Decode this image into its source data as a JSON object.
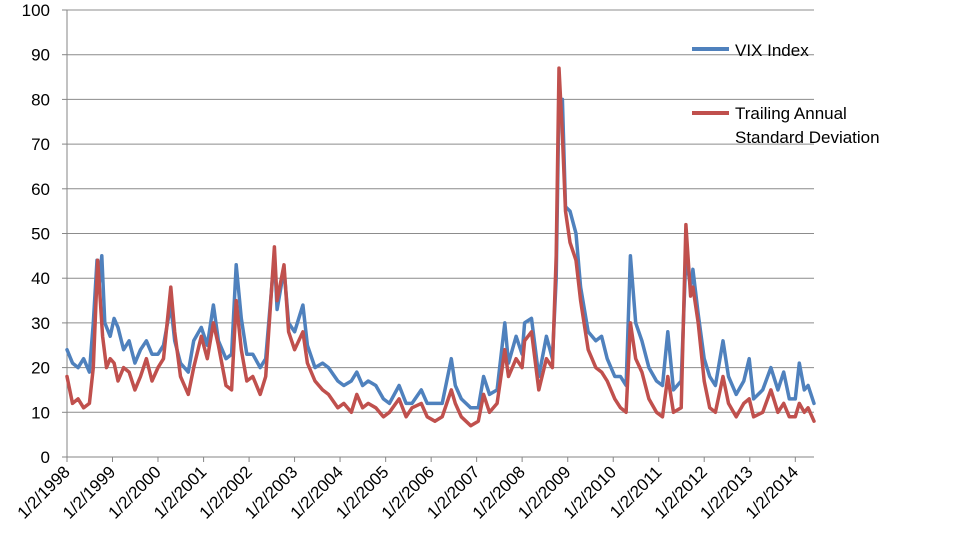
{
  "chart_data": {
    "type": "line",
    "title": "",
    "xlabel": "",
    "ylabel": "",
    "ylim": [
      0,
      100
    ],
    "yticks": [
      0,
      10,
      20,
      30,
      40,
      50,
      60,
      70,
      80,
      90,
      100
    ],
    "xlim": [
      "1/2/1998",
      "6/1/2014"
    ],
    "xticks": [
      "1/2/1998",
      "1/2/1999",
      "1/2/2000",
      "1/2/2001",
      "1/2/2002",
      "1/2/2003",
      "1/2/2004",
      "1/2/2005",
      "1/2/2006",
      "1/2/2007",
      "1/2/2008",
      "1/2/2009",
      "1/2/2010",
      "1/2/2011",
      "1/2/2012",
      "1/2/2013",
      "1/2/2014"
    ],
    "grid": "horizontal",
    "legend_position": "right",
    "series": [
      {
        "name": "VIX Index",
        "color": "#4F81BD",
        "points": [
          [
            "1/2/1998",
            24
          ],
          [
            "2/15/1998",
            21
          ],
          [
            "4/1/1998",
            20
          ],
          [
            "5/15/1998",
            22
          ],
          [
            "7/1/1998",
            19
          ],
          [
            "8/1/1998",
            30
          ],
          [
            "8/31/1998",
            44
          ],
          [
            "9/15/1998",
            38
          ],
          [
            "10/8/1998",
            45
          ],
          [
            "11/1/1998",
            30
          ],
          [
            "12/15/1998",
            27
          ],
          [
            "1/15/1999",
            31
          ],
          [
            "2/15/1999",
            29
          ],
          [
            "4/1/1999",
            24
          ],
          [
            "5/15/1999",
            26
          ],
          [
            "7/1/1999",
            21
          ],
          [
            "8/15/1999",
            24
          ],
          [
            "10/1/1999",
            26
          ],
          [
            "11/15/1999",
            23
          ],
          [
            "1/2/2000",
            23
          ],
          [
            "2/15/2000",
            25
          ],
          [
            "4/14/2000",
            34
          ],
          [
            "5/15/2000",
            26
          ],
          [
            "7/1/2000",
            21
          ],
          [
            "9/1/2000",
            19
          ],
          [
            "10/15/2000",
            26
          ],
          [
            "12/15/2000",
            29
          ],
          [
            "2/1/2001",
            25
          ],
          [
            "3/22/2001",
            34
          ],
          [
            "5/1/2001",
            26
          ],
          [
            "7/1/2001",
            22
          ],
          [
            "8/15/2001",
            23
          ],
          [
            "9/21/2001",
            43
          ],
          [
            "11/1/2001",
            31
          ],
          [
            "12/15/2001",
            23
          ],
          [
            "2/1/2002",
            23
          ],
          [
            "4/1/2002",
            20
          ],
          [
            "5/15/2002",
            22
          ],
          [
            "7/24/2002",
            45
          ],
          [
            "8/15/2002",
            33
          ],
          [
            "10/9/2002",
            42
          ],
          [
            "11/15/2002",
            30
          ],
          [
            "1/2/2003",
            28
          ],
          [
            "3/10/2003",
            34
          ],
          [
            "4/15/2003",
            25
          ],
          [
            "6/15/2003",
            20
          ],
          [
            "8/15/2003",
            21
          ],
          [
            "10/1/2003",
            20
          ],
          [
            "12/15/2003",
            17
          ],
          [
            "2/1/2004",
            16
          ],
          [
            "4/1/2004",
            17
          ],
          [
            "5/15/2004",
            19
          ],
          [
            "7/1/2004",
            16
          ],
          [
            "8/15/2004",
            17
          ],
          [
            "10/15/2004",
            16
          ],
          [
            "12/15/2004",
            13
          ],
          [
            "2/1/2005",
            12
          ],
          [
            "4/20/2005",
            16
          ],
          [
            "6/15/2005",
            12
          ],
          [
            "8/1/2005",
            12
          ],
          [
            "10/15/2005",
            15
          ],
          [
            "12/1/2005",
            12
          ],
          [
            "2/1/2006",
            12
          ],
          [
            "4/1/2006",
            12
          ],
          [
            "6/13/2006",
            22
          ],
          [
            "7/15/2006",
            16
          ],
          [
            "9/1/2006",
            13
          ],
          [
            "11/15/2006",
            11
          ],
          [
            "1/15/2007",
            11
          ],
          [
            "2/27/2007",
            18
          ],
          [
            "4/15/2007",
            14
          ],
          [
            "6/15/2007",
            15
          ],
          [
            "8/16/2007",
            30
          ],
          [
            "9/15/2007",
            21
          ],
          [
            "11/15/2007",
            27
          ],
          [
            "1/2/2008",
            23
          ],
          [
            "1/22/2008",
            30
          ],
          [
            "3/17/2008",
            31
          ],
          [
            "5/15/2008",
            18
          ],
          [
            "7/15/2008",
            27
          ],
          [
            "9/1/2008",
            22
          ],
          [
            "10/1/2008",
            40
          ],
          [
            "10/24/2008",
            80
          ],
          [
            "11/20/2008",
            80
          ],
          [
            "12/15/2008",
            56
          ],
          [
            "1/20/2009",
            55
          ],
          [
            "3/9/2009",
            50
          ],
          [
            "4/15/2009",
            38
          ],
          [
            "6/15/2009",
            28
          ],
          [
            "8/15/2009",
            26
          ],
          [
            "10/1/2009",
            27
          ],
          [
            "11/15/2009",
            22
          ],
          [
            "1/15/2010",
            18
          ],
          [
            "3/1/2010",
            18
          ],
          [
            "4/15/2010",
            16
          ],
          [
            "5/20/2010",
            45
          ],
          [
            "7/1/2010",
            30
          ],
          [
            "8/20/2010",
            26
          ],
          [
            "10/15/2010",
            20
          ],
          [
            "12/15/2010",
            17
          ],
          [
            "2/1/2011",
            16
          ],
          [
            "3/16/2011",
            28
          ],
          [
            "5/1/2011",
            15
          ],
          [
            "7/1/2011",
            17
          ],
          [
            "8/8/2011",
            45
          ],
          [
            "9/15/2011",
            38
          ],
          [
            "10/3/2011",
            42
          ],
          [
            "11/15/2011",
            32
          ],
          [
            "1/2/2012",
            22
          ],
          [
            "2/15/2012",
            18
          ],
          [
            "4/1/2012",
            16
          ],
          [
            "6/1/2012",
            26
          ],
          [
            "7/15/2012",
            18
          ],
          [
            "9/15/2012",
            14
          ],
          [
            "11/15/2012",
            17
          ],
          [
            "12/28/2012",
            22
          ],
          [
            "2/1/2013",
            13
          ],
          [
            "4/15/2013",
            15
          ],
          [
            "6/20/2013",
            20
          ],
          [
            "8/15/2013",
            15
          ],
          [
            "10/1/2013",
            19
          ],
          [
            "11/15/2013",
            13
          ],
          [
            "1/2/2014",
            13
          ],
          [
            "2/3/2014",
            21
          ],
          [
            "3/15/2014",
            15
          ],
          [
            "4/15/2014",
            16
          ],
          [
            "6/1/2014",
            12
          ]
        ]
      },
      {
        "name": "Trailing Annual Standard Deviation",
        "color": "#C0504D",
        "points": [
          [
            "1/2/1998",
            18
          ],
          [
            "2/15/1998",
            12
          ],
          [
            "4/1/1998",
            13
          ],
          [
            "5/15/1998",
            11
          ],
          [
            "7/1/1998",
            12
          ],
          [
            "8/1/1998",
            20
          ],
          [
            "9/5/1998",
            44
          ],
          [
            "10/15/1998",
            27
          ],
          [
            "11/15/1998",
            20
          ],
          [
            "12/15/1998",
            22
          ],
          [
            "1/15/1999",
            21
          ],
          [
            "2/15/1999",
            17
          ],
          [
            "4/1/1999",
            20
          ],
          [
            "5/15/1999",
            19
          ],
          [
            "7/1/1999",
            15
          ],
          [
            "8/15/1999",
            18
          ],
          [
            "10/1/1999",
            22
          ],
          [
            "11/15/1999",
            17
          ],
          [
            "1/2/2000",
            20
          ],
          [
            "2/15/2000",
            22
          ],
          [
            "4/14/2000",
            38
          ],
          [
            "5/15/2000",
            28
          ],
          [
            "7/1/2000",
            18
          ],
          [
            "9/1/2000",
            14
          ],
          [
            "10/15/2000",
            20
          ],
          [
            "12/15/2000",
            27
          ],
          [
            "2/1/2001",
            22
          ],
          [
            "3/22/2001",
            30
          ],
          [
            "5/1/2001",
            25
          ],
          [
            "7/1/2001",
            16
          ],
          [
            "8/15/2001",
            15
          ],
          [
            "9/21/2001",
            35
          ],
          [
            "11/1/2001",
            24
          ],
          [
            "12/15/2001",
            17
          ],
          [
            "2/1/2002",
            18
          ],
          [
            "4/1/2002",
            14
          ],
          [
            "5/15/2002",
            18
          ],
          [
            "7/24/2002",
            47
          ],
          [
            "8/15/2002",
            35
          ],
          [
            "10/9/2002",
            43
          ],
          [
            "11/15/2002",
            28
          ],
          [
            "1/2/2003",
            24
          ],
          [
            "3/10/2003",
            28
          ],
          [
            "4/15/2003",
            21
          ],
          [
            "6/15/2003",
            17
          ],
          [
            "8/15/2003",
            15
          ],
          [
            "10/1/2003",
            14
          ],
          [
            "12/15/2003",
            11
          ],
          [
            "2/1/2004",
            12
          ],
          [
            "4/1/2004",
            10
          ],
          [
            "5/15/2004",
            14
          ],
          [
            "7/1/2004",
            11
          ],
          [
            "8/15/2004",
            12
          ],
          [
            "10/15/2004",
            11
          ],
          [
            "12/15/2004",
            9
          ],
          [
            "2/1/2005",
            10
          ],
          [
            "4/20/2005",
            13
          ],
          [
            "6/15/2005",
            9
          ],
          [
            "8/1/2005",
            11
          ],
          [
            "10/15/2005",
            12
          ],
          [
            "12/1/2005",
            9
          ],
          [
            "2/1/2006",
            8
          ],
          [
            "4/1/2006",
            9
          ],
          [
            "6/13/2006",
            15
          ],
          [
            "7/15/2006",
            12
          ],
          [
            "9/1/2006",
            9
          ],
          [
            "11/15/2006",
            7
          ],
          [
            "1/15/2007",
            8
          ],
          [
            "2/27/2007",
            14
          ],
          [
            "4/15/2007",
            10
          ],
          [
            "6/15/2007",
            12
          ],
          [
            "8/16/2007",
            24
          ],
          [
            "9/15/2007",
            18
          ],
          [
            "11/15/2007",
            22
          ],
          [
            "1/2/2008",
            20
          ],
          [
            "1/22/2008",
            26
          ],
          [
            "3/17/2008",
            28
          ],
          [
            "5/15/2008",
            15
          ],
          [
            "7/15/2008",
            22
          ],
          [
            "9/1/2008",
            20
          ],
          [
            "10/1/2008",
            45
          ],
          [
            "10/24/2008",
            87
          ],
          [
            "11/20/2008",
            72
          ],
          [
            "12/15/2008",
            55
          ],
          [
            "1/20/2009",
            48
          ],
          [
            "3/9/2009",
            44
          ],
          [
            "4/15/2009",
            35
          ],
          [
            "6/15/2009",
            24
          ],
          [
            "8/15/2009",
            20
          ],
          [
            "10/1/2009",
            19
          ],
          [
            "11/15/2009",
            17
          ],
          [
            "1/15/2010",
            13
          ],
          [
            "3/1/2010",
            11
          ],
          [
            "4/15/2010",
            10
          ],
          [
            "5/20/2010",
            30
          ],
          [
            "7/1/2010",
            22
          ],
          [
            "8/20/2010",
            19
          ],
          [
            "10/15/2010",
            13
          ],
          [
            "12/15/2010",
            10
          ],
          [
            "2/1/2011",
            9
          ],
          [
            "3/16/2011",
            18
          ],
          [
            "5/1/2011",
            10
          ],
          [
            "7/1/2011",
            11
          ],
          [
            "8/8/2011",
            52
          ],
          [
            "9/15/2011",
            36
          ],
          [
            "10/3/2011",
            38
          ],
          [
            "11/15/2011",
            30
          ],
          [
            "1/2/2012",
            17
          ],
          [
            "2/15/2012",
            11
          ],
          [
            "4/1/2012",
            10
          ],
          [
            "6/1/2012",
            18
          ],
          [
            "7/15/2012",
            12
          ],
          [
            "9/15/2012",
            9
          ],
          [
            "11/15/2012",
            12
          ],
          [
            "12/28/2012",
            13
          ],
          [
            "2/1/2013",
            9
          ],
          [
            "4/15/2013",
            10
          ],
          [
            "6/20/2013",
            15
          ],
          [
            "8/15/2013",
            10
          ],
          [
            "10/1/2013",
            12
          ],
          [
            "11/15/2013",
            9
          ],
          [
            "1/2/2014",
            9
          ],
          [
            "2/3/2014",
            12
          ],
          [
            "3/15/2014",
            10
          ],
          [
            "4/15/2014",
            11
          ],
          [
            "6/1/2014",
            8
          ]
        ]
      }
    ]
  }
}
